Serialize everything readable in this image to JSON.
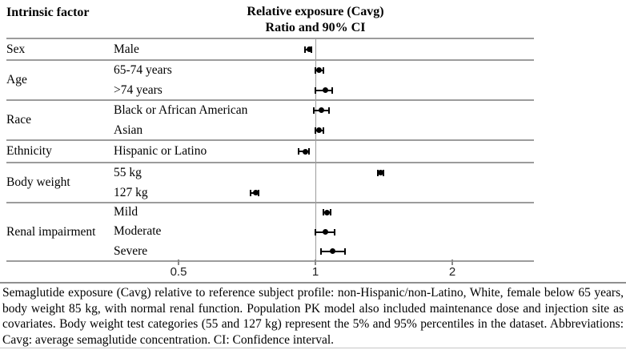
{
  "header": {
    "left_title": "Intrinsic factor",
    "plot_title_line1": "Relative exposure (Cavg)",
    "plot_title_line2": "Ratio and 90% CI"
  },
  "chart_data": {
    "type": "forest",
    "title": "Relative exposure (Cavg) Ratio and 90% CI",
    "x_axis": {
      "scale": "log2",
      "ticks": [
        {
          "value": 0.5,
          "label": "0.5"
        },
        {
          "value": 1,
          "label": "1"
        },
        {
          "value": 2,
          "label": "2"
        }
      ],
      "reference_line": 1,
      "xlim": [
        0.21,
        3.0
      ]
    },
    "marker_color": "#000000",
    "grid_color": "#9c9c9c",
    "groups": [
      {
        "factor": "Sex",
        "rows": [
          {
            "label": "Male",
            "estimate": 0.97,
            "ci_low": 0.95,
            "ci_high": 0.98
          }
        ]
      },
      {
        "factor": "Age",
        "rows": [
          {
            "label": "65-74 years",
            "estimate": 1.02,
            "ci_low": 1.0,
            "ci_high": 1.04
          },
          {
            "label": ">74 years",
            "estimate": 1.05,
            "ci_low": 1.0,
            "ci_high": 1.09
          }
        ]
      },
      {
        "factor": "Race",
        "rows": [
          {
            "label": "Black or African American",
            "estimate": 1.03,
            "ci_low": 0.99,
            "ci_high": 1.07
          },
          {
            "label": "Asian",
            "estimate": 1.02,
            "ci_low": 1.0,
            "ci_high": 1.04
          }
        ]
      },
      {
        "factor": "Ethnicity",
        "rows": [
          {
            "label": "Hispanic or Latino",
            "estimate": 0.95,
            "ci_low": 0.92,
            "ci_high": 0.97
          }
        ]
      },
      {
        "factor": "Body weight",
        "rows": [
          {
            "label": "55 kg",
            "estimate": 1.39,
            "ci_low": 1.37,
            "ci_high": 1.41
          },
          {
            "label": "127 kg",
            "estimate": 0.74,
            "ci_low": 0.72,
            "ci_high": 0.75
          }
        ]
      },
      {
        "factor": "Renal impairment",
        "rows": [
          {
            "label": "Mild",
            "estimate": 1.06,
            "ci_low": 1.04,
            "ci_high": 1.08
          },
          {
            "label": "Moderate",
            "estimate": 1.05,
            "ci_low": 1.0,
            "ci_high": 1.1
          },
          {
            "label": "Severe",
            "estimate": 1.09,
            "ci_low": 1.03,
            "ci_high": 1.16
          }
        ]
      }
    ]
  },
  "caption": {
    "text": "Semaglutide exposure (Cavg) relative to reference subject profile: non-Hispanic/non-Latino, White, female below 65 years, body weight 85 kg, with normal renal function. Population PK model also included maintenance dose and injection site as covariates. Body weight test categories (55 and 127 kg) represent the 5% and 95% percentiles in the dataset. Abbreviations: Cavg: average semaglutide concentration. CI: Confidence interval."
  }
}
